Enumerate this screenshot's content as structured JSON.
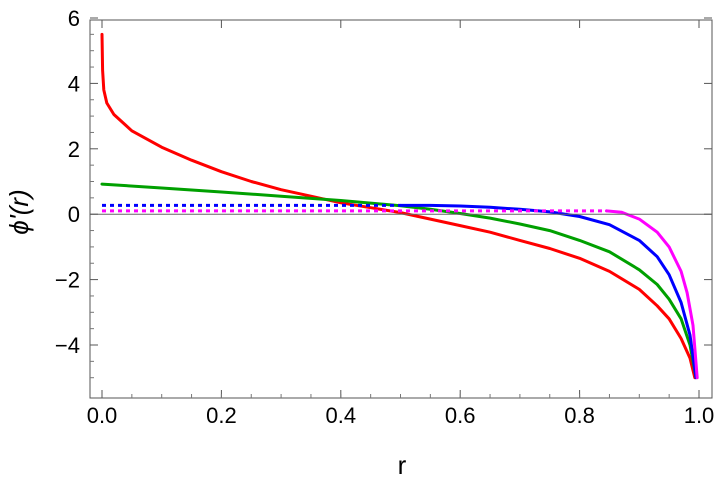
{
  "chart_data": {
    "type": "line",
    "title": "",
    "xlabel": "r",
    "ylabel": "ϕ'(r)",
    "xlim": [
      0.0,
      1.0
    ],
    "ylim": [
      -5.4,
      6.1
    ],
    "xticks": [
      "0.0",
      "0.2",
      "0.4",
      "0.6",
      "0.8",
      "1.0"
    ],
    "xtick_values": [
      0.0,
      0.2,
      0.4,
      0.6,
      0.8,
      1.0
    ],
    "yticks": [
      "−4",
      "−2",
      "0",
      "2",
      "4",
      "6"
    ],
    "ytick_values": [
      -4,
      -2,
      0,
      2,
      4,
      6
    ],
    "grid": false,
    "zero_line": true,
    "series": [
      {
        "color": "#ff0000",
        "style": "solid",
        "points": [
          [
            0.0,
            5.5
          ],
          [
            0.001,
            4.4
          ],
          [
            0.003,
            3.8
          ],
          [
            0.008,
            3.4
          ],
          [
            0.02,
            3.05
          ],
          [
            0.05,
            2.55
          ],
          [
            0.1,
            2.05
          ],
          [
            0.15,
            1.65
          ],
          [
            0.2,
            1.3
          ],
          [
            0.25,
            1.0
          ],
          [
            0.3,
            0.75
          ],
          [
            0.35,
            0.55
          ],
          [
            0.4,
            0.35
          ],
          [
            0.45,
            0.2
          ],
          [
            0.5,
            0.05
          ],
          [
            0.55,
            -0.15
          ],
          [
            0.6,
            -0.35
          ],
          [
            0.65,
            -0.55
          ],
          [
            0.7,
            -0.8
          ],
          [
            0.75,
            -1.05
          ],
          [
            0.8,
            -1.35
          ],
          [
            0.85,
            -1.75
          ],
          [
            0.9,
            -2.3
          ],
          [
            0.93,
            -2.8
          ],
          [
            0.95,
            -3.2
          ],
          [
            0.97,
            -3.8
          ],
          [
            0.985,
            -4.4
          ],
          [
            0.993,
            -5.0
          ]
        ]
      },
      {
        "color": "#00a000",
        "style": "solid",
        "points": [
          [
            0.0,
            0.92
          ],
          [
            0.1,
            0.8
          ],
          [
            0.2,
            0.68
          ],
          [
            0.3,
            0.55
          ],
          [
            0.4,
            0.42
          ],
          [
            0.5,
            0.26
          ],
          [
            0.55,
            0.15
          ],
          [
            0.6,
            0.02
          ],
          [
            0.65,
            -0.12
          ],
          [
            0.7,
            -0.3
          ],
          [
            0.75,
            -0.5
          ],
          [
            0.8,
            -0.8
          ],
          [
            0.85,
            -1.15
          ],
          [
            0.9,
            -1.7
          ],
          [
            0.93,
            -2.15
          ],
          [
            0.95,
            -2.6
          ],
          [
            0.97,
            -3.2
          ],
          [
            0.985,
            -4.0
          ],
          [
            0.995,
            -5.0
          ]
        ]
      },
      {
        "color": "#0000ff",
        "style": "dotted",
        "points": [
          [
            0.0,
            0.27
          ],
          [
            0.5,
            0.27
          ]
        ]
      },
      {
        "color": "#0000ff",
        "style": "solid",
        "points": [
          [
            0.5,
            0.27
          ],
          [
            0.55,
            0.27
          ],
          [
            0.6,
            0.25
          ],
          [
            0.65,
            0.21
          ],
          [
            0.7,
            0.15
          ],
          [
            0.75,
            0.07
          ],
          [
            0.8,
            -0.07
          ],
          [
            0.85,
            -0.32
          ],
          [
            0.9,
            -0.8
          ],
          [
            0.93,
            -1.3
          ],
          [
            0.95,
            -1.85
          ],
          [
            0.97,
            -2.7
          ],
          [
            0.985,
            -3.7
          ],
          [
            0.995,
            -5.0
          ]
        ]
      },
      {
        "color": "#ff00ff",
        "style": "dotted",
        "points": [
          [
            0.0,
            0.1
          ],
          [
            0.845,
            0.1
          ]
        ]
      },
      {
        "color": "#ff00ff",
        "style": "solid",
        "points": [
          [
            0.845,
            0.1
          ],
          [
            0.87,
            0.06
          ],
          [
            0.9,
            -0.15
          ],
          [
            0.93,
            -0.55
          ],
          [
            0.95,
            -1.0
          ],
          [
            0.97,
            -1.75
          ],
          [
            0.98,
            -2.4
          ],
          [
            0.99,
            -3.4
          ],
          [
            0.997,
            -5.0
          ]
        ]
      }
    ]
  }
}
